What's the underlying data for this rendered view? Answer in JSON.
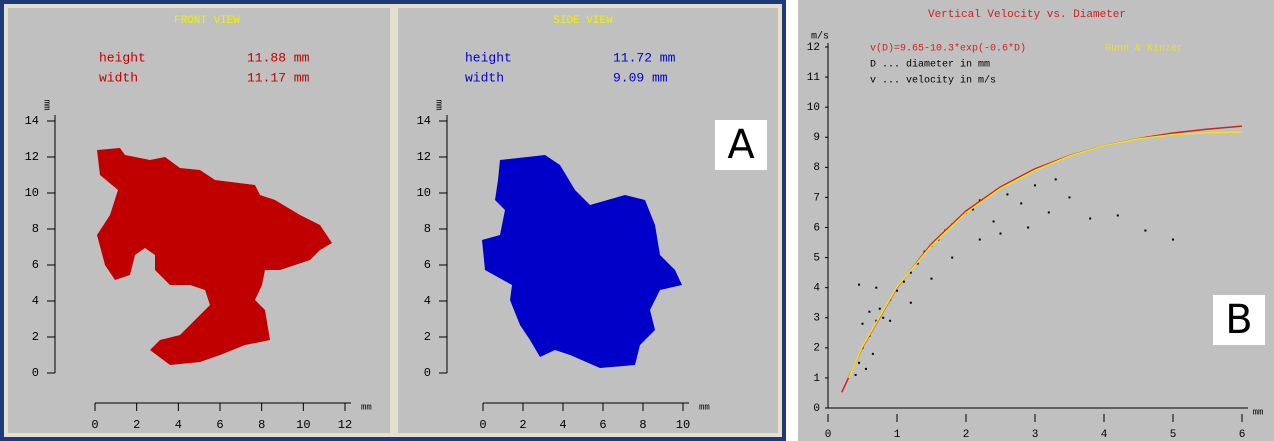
{
  "chart_data": [
    {
      "type": "shape",
      "title": "FRONT VIEW",
      "color": "#c00000",
      "measurements": [
        {
          "label": "height",
          "value": "11.88 mm"
        },
        {
          "label": "width",
          "value": "11.17 mm"
        }
      ],
      "x_label": "mm",
      "y_label": "mm",
      "xlim": [
        0,
        12
      ],
      "xticks": [
        0,
        2,
        4,
        6,
        8,
        10,
        12
      ],
      "ylim": [
        0,
        14
      ],
      "yticks": [
        0,
        2,
        4,
        6,
        8,
        10,
        12,
        14
      ]
    },
    {
      "type": "shape",
      "title": "SIDE VIEW",
      "color": "#0000c8",
      "panel_label": "A",
      "measurements": [
        {
          "label": "height",
          "value": "11.72 mm"
        },
        {
          "label": "width",
          "value": "9.09 mm"
        }
      ],
      "x_label": "mm",
      "y_label": "mm",
      "xlim": [
        0,
        10
      ],
      "xticks": [
        0,
        2,
        4,
        6,
        8,
        10
      ],
      "ylim": [
        0,
        14
      ],
      "yticks": [
        0,
        2,
        4,
        6,
        8,
        10,
        12,
        14
      ]
    },
    {
      "type": "scatter",
      "title": "Vertical Velocity vs. Diameter",
      "panel_label": "B",
      "annotations": [
        "D ... diameter in mm",
        "v ... velocity in m/s"
      ],
      "x_label": "mm",
      "y_label": "m/s",
      "xlim": [
        0,
        6
      ],
      "xticks": [
        0,
        1,
        2,
        3,
        4,
        5,
        6
      ],
      "ylim": [
        0,
        12
      ],
      "yticks": [
        0,
        1,
        2,
        3,
        4,
        5,
        6,
        7,
        8,
        9,
        10,
        11,
        12
      ],
      "points": {
        "color": "#000000",
        "x": [
          0.4,
          0.45,
          0.5,
          0.55,
          0.6,
          0.65,
          0.7,
          0.5,
          0.6,
          0.75,
          0.8,
          0.9,
          1.0,
          1.1,
          1.2,
          1.3,
          1.4,
          1.5,
          1.6,
          1.7,
          1.8,
          1.9,
          2.0,
          2.1,
          2.2,
          2.3,
          2.4,
          2.6,
          2.8,
          3.0,
          3.2,
          3.5,
          3.8,
          4.2,
          4.6,
          5.0,
          0.45,
          0.7,
          0.9,
          1.2,
          1.5,
          1.8,
          2.2,
          2.5,
          2.9,
          3.3
        ],
        "y": [
          1.1,
          1.5,
          2.0,
          1.3,
          2.4,
          1.8,
          2.9,
          2.8,
          3.2,
          3.3,
          3.0,
          3.6,
          3.9,
          4.2,
          4.5,
          4.8,
          5.2,
          5.4,
          5.6,
          5.9,
          6.1,
          6.3,
          6.5,
          6.6,
          6.9,
          7.0,
          6.2,
          7.1,
          6.8,
          7.4,
          6.5,
          7.0,
          6.3,
          6.4,
          5.9,
          5.6,
          4.1,
          4.0,
          2.9,
          3.5,
          4.3,
          5.0,
          5.6,
          5.8,
          6.0,
          7.6
        ]
      },
      "series": [
        {
          "name": "v(D)=9.65-10.3*exp(-0.6*D)",
          "color": "#d02020",
          "x": [
            0.2,
            0.5,
            1,
            1.5,
            2,
            2.5,
            3,
            3.5,
            4,
            4.5,
            5,
            5.5,
            6
          ],
          "values": [
            0.52,
            2.02,
            4.0,
            5.46,
            6.55,
            7.35,
            7.95,
            8.39,
            8.72,
            8.96,
            9.14,
            9.27,
            9.37
          ]
        },
        {
          "name": "Gunn & Kinzer",
          "color": "#f0e020",
          "x": [
            0.3,
            0.5,
            1,
            1.5,
            2,
            2.5,
            3,
            3.5,
            4,
            4.5,
            5,
            5.5,
            6
          ],
          "values": [
            1.0,
            2.05,
            4.03,
            5.4,
            6.49,
            7.3,
            7.9,
            8.38,
            8.72,
            8.95,
            9.09,
            9.15,
            9.17
          ]
        }
      ]
    }
  ]
}
